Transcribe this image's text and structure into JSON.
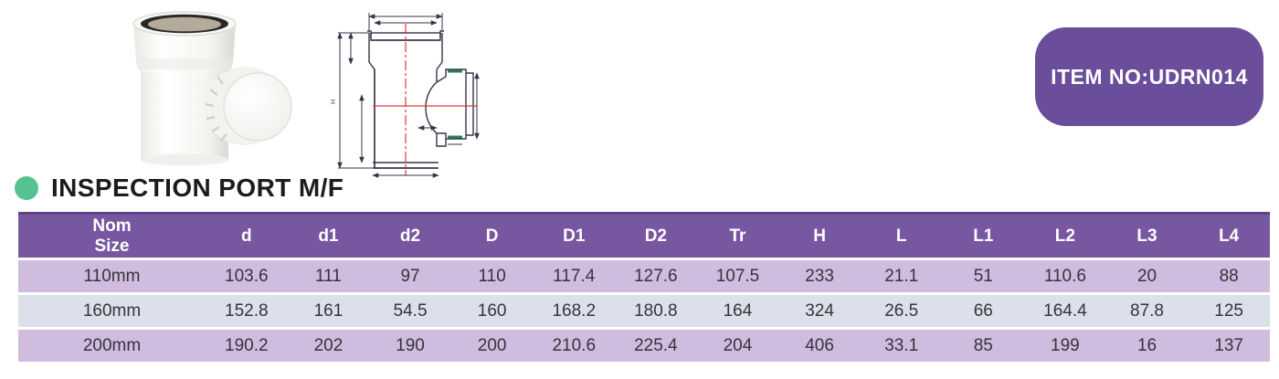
{
  "colors": {
    "badge_purple": "#6a4d9b",
    "header_purple": "#7857a1",
    "header_border": "#5d4189",
    "row_lavender": "#cfbcde",
    "row_blue": "#dbe0ea",
    "bullet_green": "#56c28f",
    "title_black": "#1d1b20",
    "cell_text": "#38333e",
    "drawing_line": "#3c3248",
    "drawing_red": "#e03a3a",
    "drawing_green": "#2e7d4f"
  },
  "badge": {
    "label": "ITEM NO:UDRN014"
  },
  "section": {
    "title": "INSPECTION PORT M/F"
  },
  "drawing": {
    "h_label": "H"
  },
  "table": {
    "size_header": {
      "line1": "Nom",
      "line2": "Size"
    },
    "columns": [
      "d",
      "d1",
      "d2",
      "D",
      "D1",
      "D2",
      "Tr",
      "H",
      "L",
      "L1",
      "L2",
      "L3",
      "L4"
    ],
    "rows": [
      {
        "size": "110mm",
        "values": [
          "103.6",
          "111",
          "97",
          "110",
          "117.4",
          "127.6",
          "107.5",
          "233",
          "21.1",
          "51",
          "110.6",
          "20",
          "88"
        ]
      },
      {
        "size": "160mm",
        "values": [
          "152.8",
          "161",
          "54.5",
          "160",
          "168.2",
          "180.8",
          "164",
          "324",
          "26.5",
          "66",
          "164.4",
          "87.8",
          "125"
        ]
      },
      {
        "size": "200mm",
        "values": [
          "190.2",
          "202",
          "190",
          "200",
          "210.6",
          "225.4",
          "204",
          "406",
          "33.1",
          "85",
          "199",
          "16",
          "137"
        ]
      }
    ]
  }
}
